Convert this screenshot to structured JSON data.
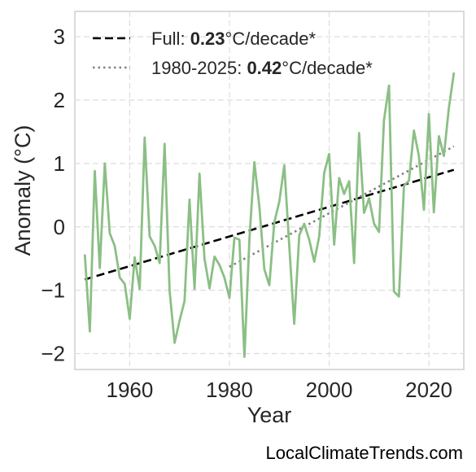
{
  "chart_data": {
    "type": "line",
    "xlabel": "Year",
    "ylabel": "Anomaly (°C)",
    "xlim": [
      1949,
      2027
    ],
    "ylim": [
      -2.25,
      3.4
    ],
    "xticks": [
      1960,
      1980,
      2000,
      2020
    ],
    "yticks": [
      -2,
      -1,
      0,
      1,
      2,
      3
    ],
    "y_tick_labels": [
      "−2",
      "−1",
      "0",
      "1",
      "2",
      "3"
    ],
    "grid": true,
    "legend_position": "upper-left",
    "x": [
      1951,
      1952,
      1953,
      1954,
      1955,
      1956,
      1957,
      1958,
      1959,
      1960,
      1961,
      1962,
      1963,
      1964,
      1965,
      1966,
      1967,
      1968,
      1969,
      1970,
      1971,
      1972,
      1973,
      1974,
      1975,
      1976,
      1977,
      1978,
      1979,
      1980,
      1981,
      1982,
      1983,
      1984,
      1985,
      1986,
      1987,
      1988,
      1989,
      1990,
      1991,
      1992,
      1993,
      1994,
      1995,
      1996,
      1997,
      1998,
      1999,
      2000,
      2001,
      2002,
      2003,
      2004,
      2005,
      2006,
      2007,
      2008,
      2009,
      2010,
      2011,
      2012,
      2013,
      2014,
      2015,
      2016,
      2017,
      2018,
      2019,
      2020,
      2021,
      2022,
      2023,
      2024,
      2025
    ],
    "series": [
      {
        "color": "#8bbf85",
        "values": [
          -0.45,
          -1.65,
          0.88,
          -0.65,
          1.0,
          -0.1,
          -0.3,
          -0.8,
          -0.9,
          -1.45,
          -0.48,
          -0.98,
          1.41,
          -0.15,
          -0.3,
          -0.57,
          1.31,
          -1.0,
          -1.83,
          -1.48,
          -1.17,
          0.43,
          -0.98,
          0.84,
          -0.5,
          -0.97,
          -0.47,
          -0.6,
          -0.8,
          -1.12,
          -0.17,
          -0.2,
          -2.05,
          -0.2,
          1.02,
          0.33,
          -0.67,
          -0.92,
          0.07,
          0.4,
          0.97,
          -0.3,
          -1.53,
          -0.13,
          0.05,
          -0.2,
          -0.55,
          -0.15,
          0.85,
          1.15,
          -0.28,
          0.77,
          0.52,
          0.72,
          -0.57,
          1.48,
          0.22,
          0.45,
          0.05,
          -0.08,
          1.68,
          2.23,
          -1.02,
          -1.1,
          0.65,
          0.73,
          1.52,
          1.12,
          0.27,
          1.78,
          0.23,
          1.43,
          1.12,
          1.87,
          2.42
        ]
      }
    ],
    "trends": [
      {
        "label": "Full: ",
        "rate": "0.23",
        "unit": "°C/decade*",
        "style": "dashed",
        "color": "#000000",
        "x": [
          1951,
          2025
        ],
        "y": [
          -0.83,
          0.9
        ]
      },
      {
        "label": "1980-2025: ",
        "rate": "0.42",
        "unit": "°C/decade*",
        "style": "dotted",
        "color": "#808080",
        "x": [
          1980,
          2025
        ],
        "y": [
          -0.63,
          1.27
        ]
      }
    ]
  },
  "source": "LocalClimateTrends.com"
}
